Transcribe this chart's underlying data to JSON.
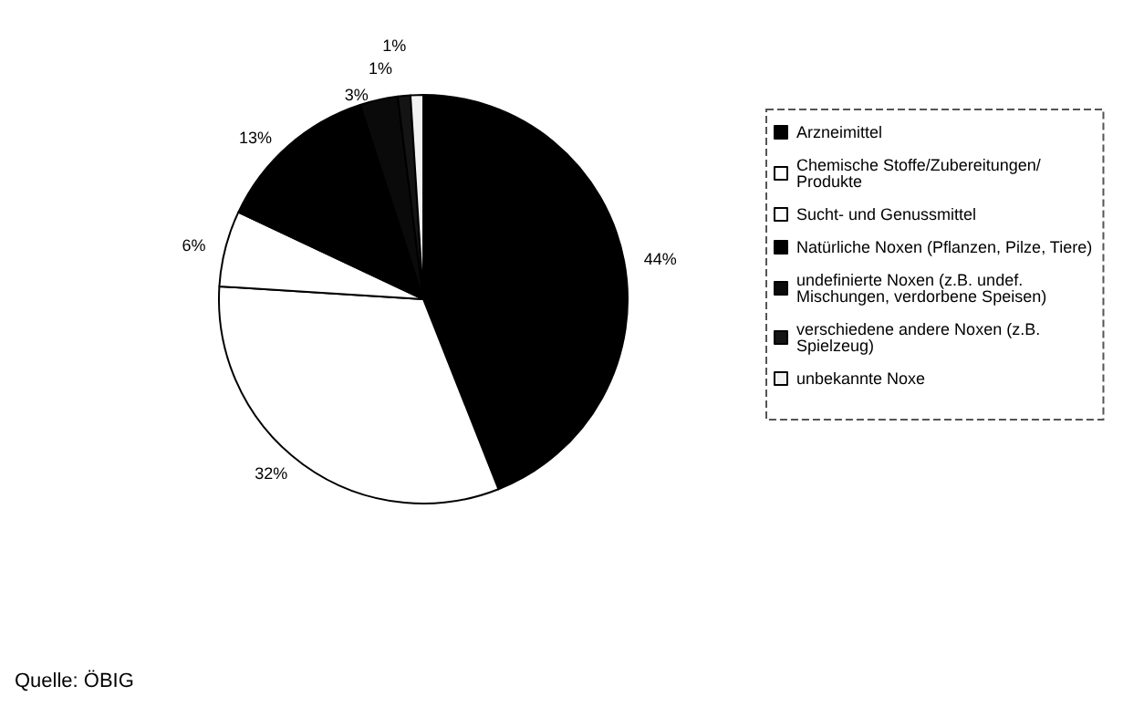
{
  "chart_data": {
    "type": "pie",
    "categories": [
      "Arzneimittel",
      "Chemische Stoffe/Zubereitungen/Produkte",
      "Sucht- und Genussmittel",
      "Natürliche Noxen (Pflanzen, Pilze, Tiere)",
      "undefinierte Noxen (z.B. undef. Mischungen, verdorbene Speisen)",
      "verschiedene andere Noxen (z.B. Spielzeug)",
      "unbekannte Noxe"
    ],
    "values": [
      44,
      32,
      6,
      13,
      3,
      1,
      1
    ],
    "colors": [
      "#000000",
      "#ffffff",
      "#ffffff",
      "#000000",
      "#0a0a0a",
      "#141414",
      "#f2f2f2"
    ],
    "value_labels": [
      "44%",
      "32%",
      "6%",
      "13%",
      "3%",
      "1%",
      "1%"
    ],
    "legend": "right",
    "annotations": [
      "Quelle: ÖBIG"
    ]
  }
}
